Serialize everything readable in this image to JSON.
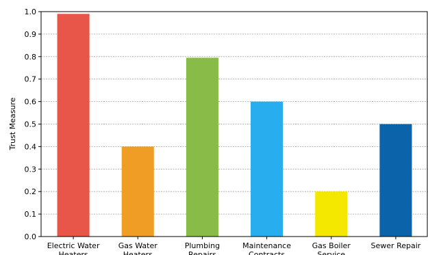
{
  "chart_data": {
    "type": "bar",
    "title": "",
    "xlabel": "",
    "ylabel": "Trust Measure",
    "ylim": [
      0,
      1.0
    ],
    "yticks": [
      0.0,
      0.1,
      0.2,
      0.3,
      0.4,
      0.5,
      0.6,
      0.7,
      0.8,
      0.9,
      1.0
    ],
    "ytick_labels": [
      "0.0",
      "0.1",
      "0.2",
      "0.3",
      "0.4",
      "0.5",
      "0.6",
      "0.7",
      "0.8",
      "0.9",
      "1.0"
    ],
    "grid": "horizontal-dashed",
    "categories": [
      [
        "Electric Water",
        "Heaters"
      ],
      [
        "Gas Water",
        "Heaters"
      ],
      [
        "Plumbing",
        "Repairs"
      ],
      [
        "Maintenance",
        "Contracts"
      ],
      [
        "Gas Boiler",
        "Service"
      ],
      [
        "Sewer Repair"
      ]
    ],
    "values": [
      0.99,
      0.4,
      0.795,
      0.6,
      0.2,
      0.5
    ],
    "colors": [
      "#e8564a",
      "#ef9d25",
      "#88bb47",
      "#28aeee",
      "#f4e800",
      "#0b63a9"
    ]
  }
}
